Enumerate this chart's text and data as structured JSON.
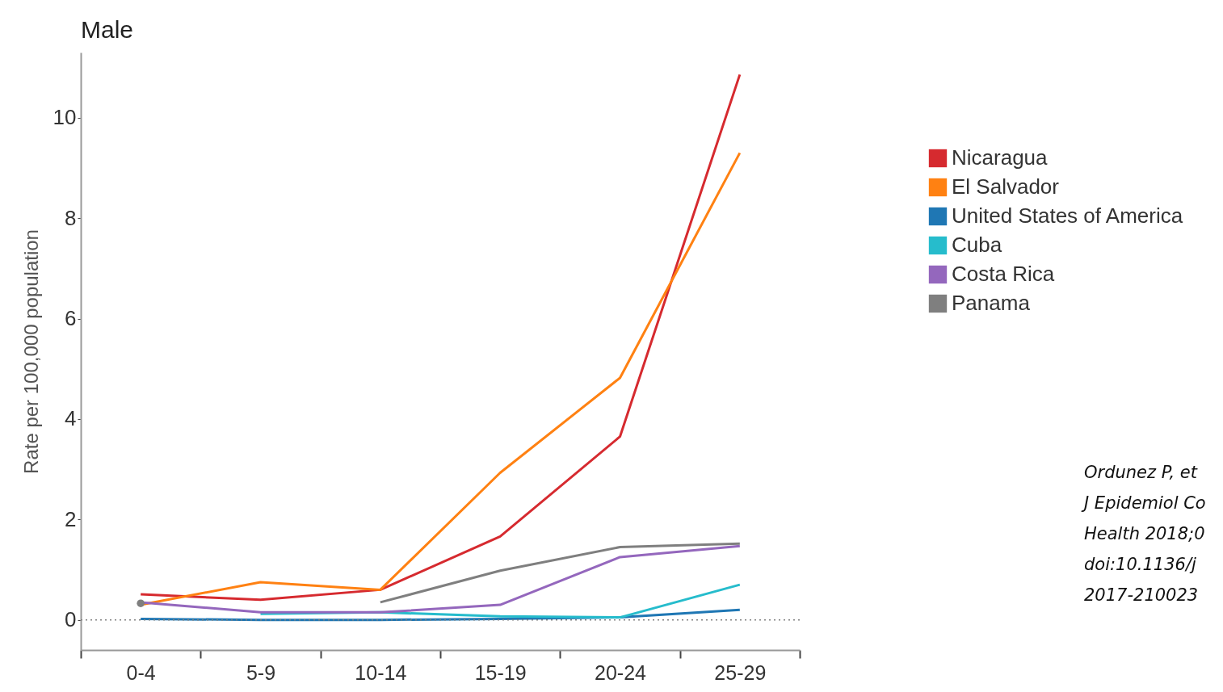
{
  "chart_data": {
    "type": "line",
    "title": "Male",
    "ylabel": "Rate per 100,000 population",
    "categories": [
      "0-4",
      "5-9",
      "10-14",
      "15-19",
      "20-24",
      "25-29"
    ],
    "series": [
      {
        "name": "Nicaragua",
        "color": "#d62a2f",
        "values": [
          0.51,
          0.4,
          0.6,
          1.66,
          3.65,
          10.86
        ]
      },
      {
        "name": "El Salvador",
        "color": "#ff8112",
        "values": [
          0.3,
          0.75,
          0.6,
          2.93,
          4.82,
          9.3
        ]
      },
      {
        "name": "United States of America",
        "color": "#1f77b4",
        "values": [
          0.02,
          0,
          0,
          0.02,
          0.05,
          0.2
        ]
      },
      {
        "name": "Cuba",
        "color": "#26bccc",
        "values": [
          null,
          0.12,
          0.15,
          0.07,
          0.05,
          0.7
        ]
      },
      {
        "name": "Costa Rica",
        "color": "#9467bd",
        "values": [
          0.35,
          0.15,
          0.15,
          0.3,
          1.25,
          1.47
        ]
      },
      {
        "name": "Panama",
        "color": "#7f7f7f",
        "values": [
          0.33,
          null,
          0.35,
          0.98,
          1.45,
          1.52
        ]
      }
    ],
    "ylim": [
      -0.6,
      11.3
    ],
    "yticks": [
      0,
      2,
      4,
      6,
      8,
      10
    ],
    "grid": false,
    "legend": "right",
    "marker": "none",
    "line_style": "solid",
    "ref_lines": [
      {
        "axis": "y",
        "value": 0,
        "color": "#808080",
        "line_style": "dotted"
      }
    ],
    "annotations": [
      "Ordunez P, et\nJ Epidemiol Co\nHealth 2018;0\ndoi:10.1136/j\n2017-210023"
    ]
  }
}
